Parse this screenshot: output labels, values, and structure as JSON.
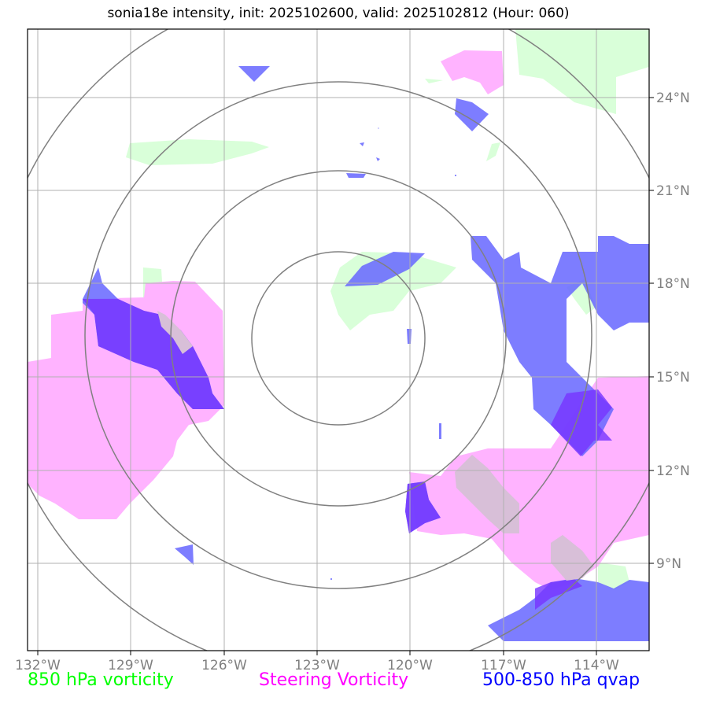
{
  "title": "sonia18e intensity, init: 2025102600, valid: 2025102812 (Hour: 060)",
  "lon_ticks": [
    "132°W",
    "129°W",
    "126°W",
    "123°W",
    "120°W",
    "117°W",
    "114°W"
  ],
  "lat_ticks": [
    "24°N",
    "21°N",
    "18°N",
    "15°N",
    "12°N",
    "9°N"
  ],
  "legend": {
    "green": "850 hPa vorticity",
    "pink": "Steering Vorticity",
    "blue": "500-850 hPa qvap"
  },
  "colors": {
    "green": "#d9ffd9",
    "pink": "#ffb3ff",
    "blue": "#6666ff",
    "legend_green": "#00ff00",
    "legend_pink": "#ff00ff",
    "legend_blue": "#0000ff",
    "grid": "#b0b0b0",
    "rings": "#808080"
  }
}
